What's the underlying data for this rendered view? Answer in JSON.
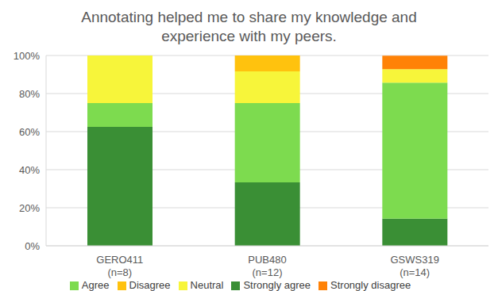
{
  "chart_data": {
    "type": "bar",
    "title": "Annotating helped me to share my knowledge and experience with my peers.",
    "categories": [
      "GERO411\n(n=8)",
      "PUB480\n(n=12)",
      "GSWS319\n(n=14)"
    ],
    "series": [
      {
        "name": "Strongly agree",
        "color": "#3a8f35",
        "values": [
          62.5,
          33.3,
          14.3
        ]
      },
      {
        "name": "Agree",
        "color": "#7ddb4f",
        "values": [
          12.5,
          41.7,
          71.4
        ]
      },
      {
        "name": "Neutral",
        "color": "#f7f53a",
        "values": [
          25,
          16.7,
          7.1
        ]
      },
      {
        "name": "Disagree",
        "color": "#ffc20e",
        "values": [
          0,
          8.3,
          0
        ]
      },
      {
        "name": "Strongly disagree",
        "color": "#ff8207",
        "values": [
          0,
          0,
          7.1
        ]
      }
    ],
    "stacked": true,
    "ylim": [
      0,
      100
    ],
    "yticks": [
      {
        "value": 0,
        "label": "0%"
      },
      {
        "value": 20,
        "label": "20%"
      },
      {
        "value": 40,
        "label": "40%"
      },
      {
        "value": 60,
        "label": "60%"
      },
      {
        "value": 80,
        "label": "80%"
      },
      {
        "value": 100,
        "label": "100%"
      }
    ],
    "grid": true,
    "legend": "bottom"
  }
}
